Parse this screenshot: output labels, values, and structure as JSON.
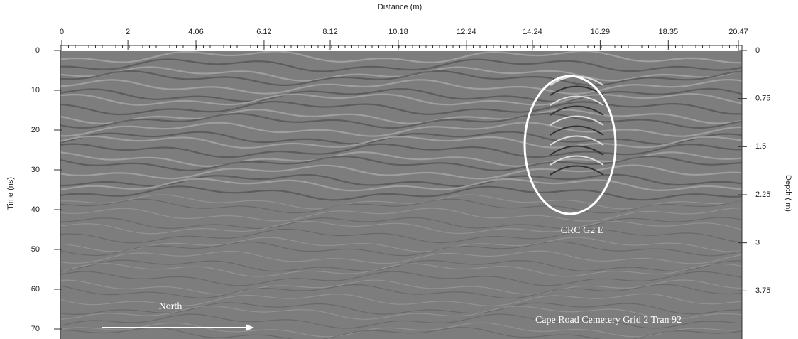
{
  "chart_data": {
    "type": "radargram",
    "xlabel": "Distance (m)",
    "ylabel": "Time (ns)",
    "y2label": "Depth ( m)",
    "xlim": [
      0,
      20.47
    ],
    "xticks": [
      0,
      2,
      4.06,
      6.12,
      8.12,
      10.18,
      12.24,
      14.24,
      16.29,
      18.35,
      20.47
    ],
    "ylim": [
      0,
      72.5
    ],
    "yticks": [
      0,
      10,
      20,
      30,
      40,
      50,
      60,
      70
    ],
    "y2lim": [
      0,
      4.5
    ],
    "y2ticks": [
      0,
      0.75,
      1.5,
      2.25,
      3,
      3.75
    ],
    "annotations": {
      "target": "CRC G2 E",
      "direction": "North",
      "caption": "Cape Road Cemetery Grid 2 Tran 92"
    }
  }
}
